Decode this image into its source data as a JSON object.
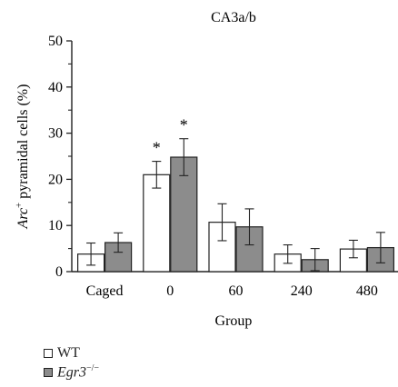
{
  "chart_data": {
    "type": "bar",
    "title": "CA3a/b",
    "xlabel": "Group",
    "ylabel": "Arc+ pyramidal cells (%)",
    "ylabel_main": "Arc",
    "ylabel_sup": "+",
    "ylabel_rest": " pyramidal cells (%)",
    "ylim": [
      0,
      50
    ],
    "yticks": [
      "0",
      "10",
      "20",
      "30",
      "40",
      "50"
    ],
    "categories": [
      "Caged",
      "0",
      "60",
      "240",
      "480"
    ],
    "series": [
      {
        "name": "WT",
        "color": "#ffffff",
        "values": [
          3.8,
          21.0,
          10.7,
          3.8,
          4.9
        ],
        "errors": [
          2.4,
          2.9,
          4.0,
          2.0,
          1.9
        ]
      },
      {
        "name": "Egr3−/−",
        "name_main": "Egr3",
        "name_sup": "−/−",
        "color": "#8c8c8c",
        "values": [
          6.3,
          24.8,
          9.7,
          2.6,
          5.2
        ],
        "errors": [
          2.1,
          4.0,
          3.9,
          2.4,
          3.3
        ]
      }
    ],
    "annotations": [
      {
        "category": "0",
        "series": "WT",
        "text": "*"
      },
      {
        "category": "0",
        "series": "Egr3−/−",
        "text": "*"
      }
    ],
    "grid": false,
    "legend_position": "bottom-left"
  }
}
